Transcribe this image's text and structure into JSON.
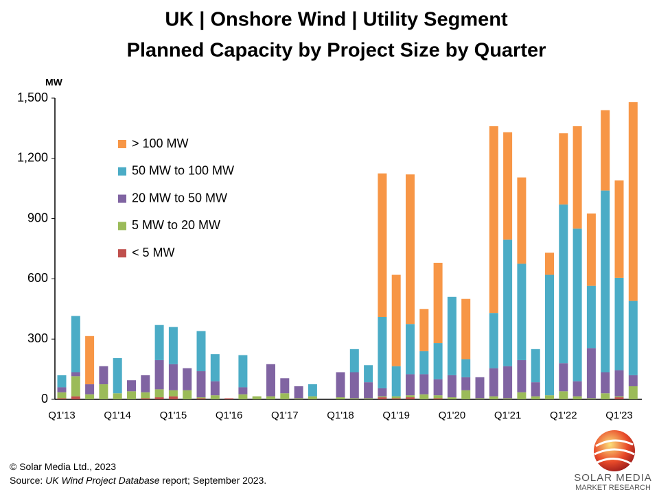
{
  "chart_data": {
    "type": "stacked_bar",
    "title": "UK | Onshore Wind | Utility Segment",
    "subtitle": "Planned Capacity by Project Size by Quarter",
    "y_label": "MW",
    "categories": [
      "Q1'13",
      null,
      null,
      null,
      "Q1'14",
      null,
      null,
      null,
      "Q1'15",
      null,
      null,
      null,
      "Q1'16",
      null,
      null,
      null,
      "Q1'17",
      null,
      null,
      null,
      "Q1'18",
      null,
      null,
      null,
      "Q1'19",
      null,
      null,
      null,
      "Q1'20",
      null,
      null,
      null,
      "Q1'21",
      null,
      null,
      null,
      "Q1'22",
      null,
      null,
      null,
      "Q1'23",
      null
    ],
    "series": [
      {
        "name": "< 5 MW",
        "color": "#c0504d",
        "values": [
          5,
          15,
          0,
          0,
          0,
          0,
          5,
          10,
          15,
          0,
          5,
          0,
          5,
          0,
          0,
          0,
          0,
          0,
          0,
          0,
          0,
          0,
          0,
          10,
          5,
          10,
          0,
          5,
          0,
          0,
          0,
          0,
          0,
          0,
          0,
          0,
          0,
          0,
          0,
          0,
          10,
          0
        ]
      },
      {
        "name": "5 MW to 20 MW",
        "color": "#9bbb59",
        "values": [
          30,
          100,
          25,
          75,
          30,
          40,
          30,
          40,
          30,
          45,
          5,
          20,
          0,
          25,
          15,
          15,
          30,
          5,
          15,
          0,
          10,
          5,
          5,
          5,
          10,
          10,
          25,
          15,
          10,
          45,
          5,
          15,
          5,
          35,
          15,
          20,
          40,
          15,
          5,
          30,
          5,
          65
        ]
      },
      {
        "name": "20 MW to 50 MW",
        "color": "#8064a2",
        "values": [
          25,
          20,
          50,
          90,
          0,
          55,
          85,
          145,
          130,
          110,
          130,
          70,
          0,
          35,
          0,
          160,
          75,
          60,
          0,
          0,
          125,
          130,
          80,
          40,
          0,
          105,
          100,
          80,
          110,
          65,
          105,
          140,
          160,
          160,
          70,
          0,
          140,
          75,
          250,
          105,
          130,
          55
        ]
      },
      {
        "name": "50 MW to 100 MW",
        "color": "#4bacc6",
        "values": [
          60,
          280,
          0,
          0,
          175,
          0,
          0,
          175,
          185,
          0,
          200,
          135,
          0,
          160,
          0,
          0,
          0,
          0,
          60,
          0,
          0,
          115,
          85,
          355,
          150,
          250,
          115,
          180,
          390,
          90,
          0,
          275,
          630,
          480,
          165,
          600,
          790,
          760,
          310,
          905,
          460,
          370
        ]
      },
      {
        "name": "> 100 MW",
        "color": "#f79646",
        "values": [
          0,
          0,
          240,
          0,
          0,
          0,
          0,
          0,
          0,
          0,
          0,
          0,
          0,
          0,
          0,
          0,
          0,
          0,
          0,
          0,
          0,
          0,
          0,
          715,
          455,
          745,
          210,
          400,
          0,
          300,
          0,
          930,
          535,
          430,
          0,
          110,
          355,
          510,
          360,
          400,
          485,
          990
        ]
      }
    ],
    "ylim": [
      0,
      1500
    ],
    "yticks": [
      0,
      300,
      600,
      900,
      {
        "value": 1200,
        "label": "1,200"
      },
      {
        "value": 1500,
        "label": "1,500"
      }
    ],
    "grid": false,
    "legend": "upper left"
  },
  "footer": {
    "copyright": "© Solar Media Ltd., 2023",
    "source_prefix": "Source: ",
    "source_title": "UK Wind Project Database",
    "source_suffix": " report; September 2023."
  },
  "logo": {
    "name": "SOLAR MEDIA",
    "tagline": "MARKET RESEARCH"
  }
}
